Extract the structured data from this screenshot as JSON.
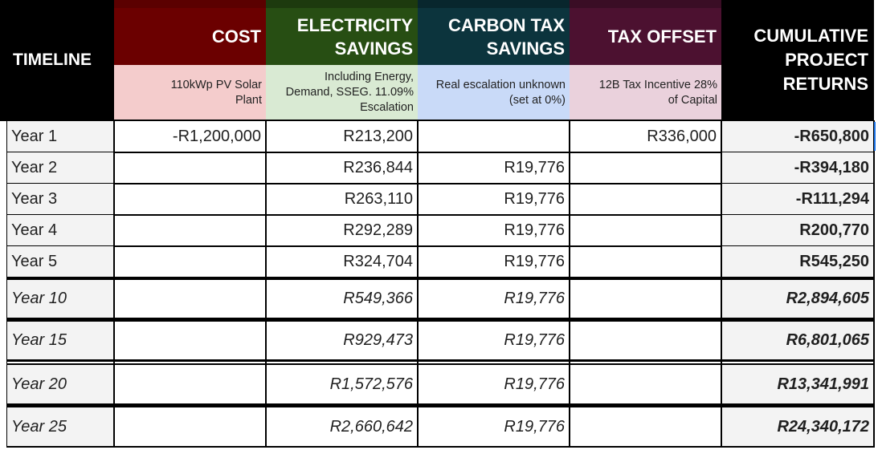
{
  "header": {
    "timeline": "TIMELINE",
    "cost": {
      "title": "COST",
      "subtitle": "110kWp PV Solar Plant"
    },
    "electricity": {
      "title": "ELECTRICITY SAVINGS",
      "subtitle": "Including Energy, Demand, SSEG. 11.09% Escalation"
    },
    "carbon": {
      "title": "CARBON TAX SAVINGS",
      "subtitle": "Real escalation unknown (set at 0%)"
    },
    "tax": {
      "title": "TAX OFFSET",
      "subtitle": "12B Tax Incentive 28% of Capital"
    },
    "cumulative": "CUMULATIVE PROJECT RETURNS"
  },
  "colors": {
    "cost_dark": "#6b0000",
    "cost_light": "#f4cccc",
    "electricity_dark": "#274e13",
    "electricity_light": "#d9ead3",
    "carbon_dark": "#0c343d",
    "carbon_light": "#c9daf8",
    "tax_dark": "#4c1130",
    "tax_light": "#ead1dc"
  },
  "rows": [
    {
      "year": "Year 1",
      "cost": "-R1,200,000",
      "electricity": "R213,200",
      "carbon": "",
      "tax": "R336,000",
      "cumulative": "-R650,800"
    },
    {
      "year": "Year 2",
      "cost": "",
      "electricity": "R236,844",
      "carbon": "R19,776",
      "tax": "",
      "cumulative": "-R394,180"
    },
    {
      "year": "Year 3",
      "cost": "",
      "electricity": "R263,110",
      "carbon": "R19,776",
      "tax": "",
      "cumulative": "-R111,294"
    },
    {
      "year": "Year 4",
      "cost": "",
      "electricity": "R292,289",
      "carbon": "R19,776",
      "tax": "",
      "cumulative": "R200,770"
    },
    {
      "year": "Year 5",
      "cost": "",
      "electricity": "R324,704",
      "carbon": "R19,776",
      "tax": "",
      "cumulative": "R545,250"
    },
    {
      "year": "Year 10",
      "cost": "",
      "electricity": "R549,366",
      "carbon": "R19,776",
      "tax": "",
      "cumulative": "R2,894,605"
    },
    {
      "year": "Year 15",
      "cost": "",
      "electricity": "R929,473",
      "carbon": "R19,776",
      "tax": "",
      "cumulative": "R6,801,065"
    },
    {
      "year": "Year 20",
      "cost": "",
      "electricity": "R1,572,576",
      "carbon": "R19,776",
      "tax": "",
      "cumulative": "R13,341,991"
    },
    {
      "year": "Year 25",
      "cost": "",
      "electricity": "R2,660,642",
      "carbon": "R19,776",
      "tax": "",
      "cumulative": "R24,340,172"
    }
  ]
}
